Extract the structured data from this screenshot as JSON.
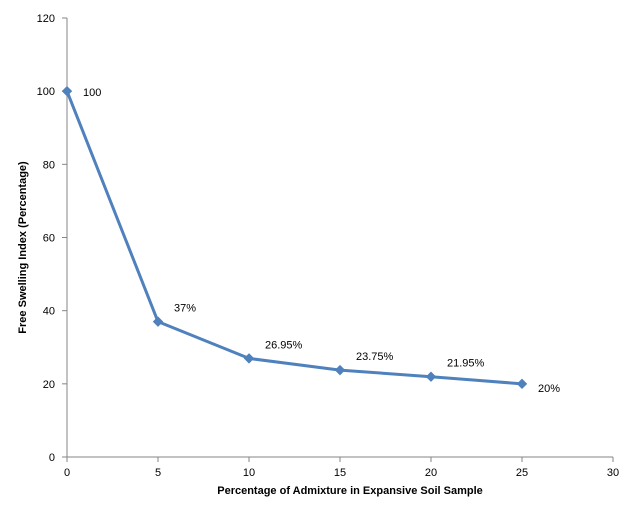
{
  "chart_data": {
    "type": "line",
    "title": "",
    "xlabel": "Percentage of Admixture in Expansive Soil Sample",
    "ylabel": "Free Swelling Index (Percentage)",
    "xlim": [
      0,
      30
    ],
    "ylim": [
      0,
      120
    ],
    "x_ticks": [
      "0",
      "5",
      "10",
      "15",
      "20",
      "25",
      "30"
    ],
    "y_ticks": [
      "0",
      "20",
      "40",
      "60",
      "80",
      "100",
      "120"
    ],
    "grid": false,
    "legend": "none",
    "line_color": "#4f81bd",
    "series": [
      {
        "x": [
          0,
          5,
          10,
          15,
          20,
          25
        ],
        "values": [
          100,
          37,
          26.95,
          23.75,
          21.95,
          20
        ],
        "labels": [
          "100",
          "37%",
          "26.95%",
          "23.75%",
          "21.95%",
          "20%"
        ]
      }
    ]
  }
}
